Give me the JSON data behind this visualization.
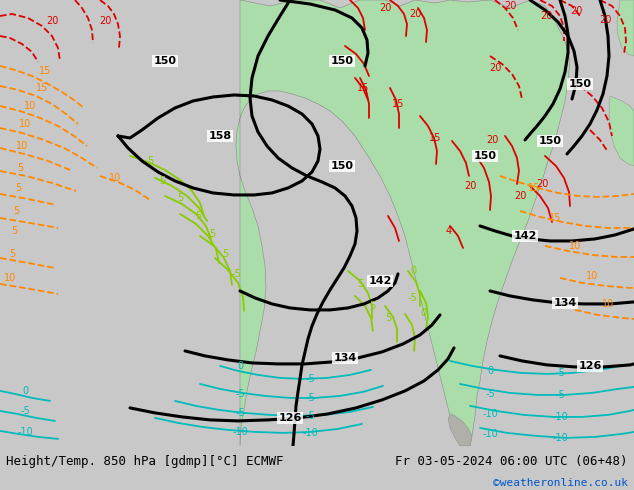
{
  "title_left": "Height/Temp. 850 hPa [gdmp][°C] ECMWF",
  "title_right": "Fr 03-05-2024 06:00 UTC (06+48)",
  "credit": "©weatheronline.co.uk",
  "bg_color": "#c8c8c8",
  "map_bg_color": "#c8c8c8",
  "fig_width": 6.34,
  "fig_height": 4.9,
  "dpi": 100,
  "bottom_bar_color": "#ffffff",
  "credit_color": "#0055cc",
  "title_fontsize": 9.0,
  "credit_fontsize": 8.0,
  "land_green_color": "#aaddaa",
  "land_gray_color": "#c0c0b8",
  "ocean_color": "#c8c8c8",
  "col_black": "#000000",
  "col_red": "#dd0000",
  "col_orange": "#ff8800",
  "col_green": "#88cc00",
  "col_darkgreen": "#008800",
  "col_cyan": "#00bbbb",
  "col_blue": "#4488ff",
  "col_magenta": "#cc00cc"
}
